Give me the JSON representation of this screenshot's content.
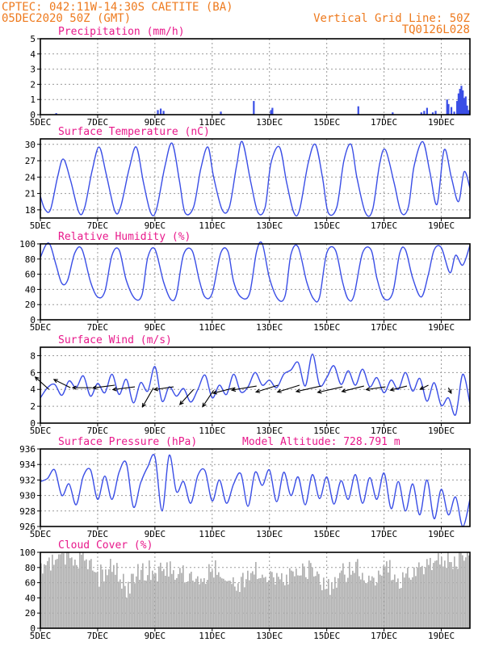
{
  "header": {
    "station": "CPTEC:  042:11W-14:30S  CAETITE (BA)",
    "run": "05DEC2020 50Z (GMT)",
    "grid_line": "Vertical Grid Line: 50Z",
    "code": "TQ0126L028"
  },
  "colors": {
    "header": "#ee7a1e",
    "title": "#e8198b",
    "series": "#3a4ee6",
    "cloud": "#b0b0b0",
    "arrow": "#000000"
  },
  "x_axis": {
    "ticks": [
      {
        "day": 0,
        "label": "5DEC"
      },
      {
        "day": 2,
        "label": "7DEC"
      },
      {
        "day": 4,
        "label": "9DEC"
      },
      {
        "day": 6,
        "label": "11DEC"
      },
      {
        "day": 8,
        "label": "13DEC"
      },
      {
        "day": 10,
        "label": "15DEC"
      },
      {
        "day": 12,
        "label": "17DEC"
      },
      {
        "day": 14,
        "label": "19DEC"
      }
    ],
    "range_days": [
      0,
      15
    ]
  },
  "chart_data": [
    {
      "type": "bar",
      "title": "Precipitation (mm/h)",
      "ylim": [
        0,
        5
      ],
      "yticks": [
        0,
        1,
        2,
        3,
        4,
        5
      ],
      "x_unit": "days since 5DEC",
      "x": [
        0.55,
        4.1,
        4.2,
        4.3,
        6.3,
        7.45,
        8.05,
        8.1,
        11.1,
        12.3,
        13.3,
        13.4,
        13.5,
        13.7,
        13.8,
        14.2,
        14.25,
        14.35,
        14.45,
        14.55,
        14.6,
        14.65,
        14.7,
        14.75,
        14.8,
        14.85,
        14.9,
        14.95
      ],
      "values": [
        0.1,
        0.3,
        0.4,
        0.25,
        0.2,
        0.9,
        0.3,
        0.45,
        0.55,
        0.15,
        0.15,
        0.25,
        0.45,
        0.15,
        0.25,
        1.0,
        0.7,
        0.5,
        0.2,
        0.9,
        1.4,
        1.7,
        1.9,
        1.6,
        1.1,
        1.2,
        0.6,
        0.3
      ]
    },
    {
      "type": "line",
      "title": "Surface Temperature (nC)",
      "ylim": [
        16.5,
        31
      ],
      "yticks": [
        18,
        21,
        24,
        27,
        30
      ],
      "series": [
        {
          "x": [
            0,
            0.15,
            0.35,
            0.6,
            0.8,
            1.05,
            1.35,
            1.55,
            1.8,
            2.05,
            2.3,
            2.6,
            2.8,
            3.1,
            3.35,
            3.6,
            3.85,
            4.05,
            4.35,
            4.6,
            4.85,
            5.05,
            5.35,
            5.6,
            5.85,
            6.05,
            6.35,
            6.6,
            6.85,
            7.05,
            7.35,
            7.6,
            7.85,
            8.05,
            8.35,
            8.6,
            8.85,
            9.05,
            9.35,
            9.6,
            9.85,
            10.05,
            10.35,
            10.6,
            10.85,
            11.05,
            11.35,
            11.6,
            11.85,
            12.05,
            12.35,
            12.6,
            12.85,
            13.05,
            13.35,
            13.6,
            13.85,
            14.1,
            14.35,
            14.6,
            14.8,
            15
          ],
          "values": [
            20.5,
            18.2,
            18.0,
            24.0,
            27.3,
            23.5,
            17.5,
            18.5,
            25.0,
            29.5,
            24.5,
            17.8,
            18.5,
            25.5,
            29.5,
            23.0,
            17.5,
            18.0,
            26.0,
            30.2,
            23.5,
            17.5,
            18.5,
            25.5,
            29.5,
            24.0,
            18.0,
            18.5,
            26.0,
            30.5,
            23.0,
            17.5,
            18.5,
            26.5,
            29.5,
            23.0,
            17.5,
            18.0,
            26.5,
            30.0,
            24.0,
            17.5,
            18.5,
            27.0,
            30.0,
            24.0,
            17.5,
            18.0,
            26.5,
            29.0,
            23.0,
            17.5,
            18.5,
            26.0,
            30.5,
            25.0,
            19.0,
            29.0,
            24.0,
            19.5,
            25.0,
            22.0
          ]
        }
      ]
    },
    {
      "type": "line",
      "title": "Relative Humidity (%)",
      "ylim": [
        0,
        100
      ],
      "yticks": [
        0,
        20,
        40,
        60,
        80,
        100
      ],
      "series": [
        {
          "x": [
            0,
            0.2,
            0.35,
            0.55,
            0.75,
            0.95,
            1.2,
            1.45,
            1.75,
            2.0,
            2.25,
            2.5,
            2.75,
            3.0,
            3.3,
            3.55,
            3.75,
            4.0,
            4.3,
            4.55,
            4.75,
            5.0,
            5.3,
            5.55,
            5.75,
            6.0,
            6.3,
            6.55,
            6.75,
            7.0,
            7.3,
            7.55,
            7.75,
            8.0,
            8.3,
            8.55,
            8.75,
            9.0,
            9.3,
            9.55,
            9.75,
            10.0,
            10.3,
            10.55,
            10.75,
            10.95,
            11.25,
            11.55,
            11.75,
            12.0,
            12.3,
            12.55,
            12.75,
            13.0,
            13.3,
            13.55,
            13.75,
            14.0,
            14.3,
            14.5,
            14.75,
            15
          ],
          "values": [
            82,
            99,
            98,
            72,
            48,
            52,
            88,
            93,
            50,
            30,
            37,
            85,
            92,
            52,
            28,
            33,
            82,
            93,
            50,
            27,
            33,
            86,
            91,
            52,
            30,
            35,
            88,
            90,
            50,
            30,
            34,
            90,
            100,
            55,
            27,
            32,
            86,
            96,
            50,
            27,
            30,
            88,
            92,
            50,
            27,
            32,
            88,
            92,
            55,
            28,
            35,
            88,
            92,
            55,
            30,
            60,
            92,
            95,
            62,
            85,
            72,
            98
          ]
        }
      ]
    },
    {
      "type": "line",
      "title": "Surface Wind (m/s)",
      "ylim": [
        0,
        9
      ],
      "yticks": [
        0,
        2,
        4,
        6,
        8
      ],
      "series": [
        {
          "x": [
            0,
            0.25,
            0.5,
            0.75,
            1.0,
            1.25,
            1.5,
            1.75,
            2.0,
            2.25,
            2.5,
            2.75,
            3.0,
            3.25,
            3.5,
            3.75,
            4.0,
            4.25,
            4.5,
            4.75,
            5.0,
            5.25,
            5.5,
            5.75,
            6.0,
            6.25,
            6.5,
            6.75,
            7.0,
            7.25,
            7.5,
            7.75,
            8.0,
            8.25,
            8.5,
            8.75,
            9.0,
            9.25,
            9.5,
            9.75,
            10.0,
            10.25,
            10.5,
            10.75,
            11.0,
            11.25,
            11.5,
            11.75,
            12.0,
            12.25,
            12.5,
            12.75,
            13.0,
            13.25,
            13.5,
            13.75,
            14.0,
            14.25,
            14.5,
            14.75,
            15
          ],
          "values": [
            3.0,
            4.2,
            4.6,
            3.3,
            5.0,
            4.2,
            5.6,
            3.2,
            4.7,
            3.6,
            5.8,
            3.4,
            5.2,
            2.4,
            4.8,
            3.8,
            6.7,
            2.6,
            4.3,
            3.2,
            4.1,
            2.5,
            4.0,
            5.7,
            3.0,
            4.5,
            3.4,
            5.8,
            3.7,
            4.3,
            6.0,
            4.5,
            5.1,
            4.2,
            5.8,
            6.3,
            7.2,
            4.4,
            8.2,
            4.5,
            5.4,
            6.8,
            4.6,
            6.2,
            4.5,
            6.4,
            4.3,
            5.4,
            3.6,
            5.1,
            4.0,
            6.0,
            3.8,
            5.3,
            2.6,
            4.8,
            2.1,
            3.0,
            1.0,
            5.8,
            2.3
          ]
        }
      ],
      "arrows": {
        "x": [
          0.3,
          1.05,
          1.8,
          2.6,
          3.3,
          3.95,
          4.65,
          5.35,
          6.05,
          6.8,
          7.55,
          8.3,
          9.05,
          9.8,
          10.55,
          11.3,
          12.05,
          12.8,
          13.55,
          14.25
        ],
        "speed": [
          4.0,
          4.2,
          4.2,
          4.5,
          4.3,
          4.2,
          4.3,
          4.0,
          3.9,
          4.2,
          4.4,
          4.5,
          4.5,
          4.4,
          4.3,
          4.4,
          4.3,
          4.4,
          4.5,
          4.2
        ],
        "u": [
          -0.5,
          -0.6,
          -0.7,
          -0.8,
          -0.8,
          -0.4,
          -0.7,
          -0.5,
          -0.4,
          -0.8,
          -0.9,
          -0.8,
          -0.8,
          -0.9,
          -0.9,
          -0.8,
          -0.7,
          -0.6,
          -0.3,
          0.1
        ],
        "v": [
          -0.45,
          -0.3,
          0.0,
          0.1,
          0.1,
          0.7,
          0.1,
          0.55,
          0.6,
          0.2,
          0.15,
          0.25,
          0.25,
          0.2,
          0.2,
          0.2,
          0.1,
          0.15,
          0.15,
          0.2
        ]
      }
    },
    {
      "type": "line",
      "title": "Surface Pressure (hPa)",
      "annotation": "Model Altitude: 728.791 m",
      "ylim": [
        926,
        936
      ],
      "yticks": [
        926,
        928,
        930,
        932,
        934,
        936
      ],
      "series": [
        {
          "x": [
            0,
            0.25,
            0.5,
            0.75,
            1.0,
            1.25,
            1.5,
            1.75,
            2.0,
            2.25,
            2.5,
            2.75,
            3.0,
            3.25,
            3.5,
            3.75,
            4.0,
            4.25,
            4.5,
            4.75,
            5.0,
            5.25,
            5.5,
            5.75,
            6.0,
            6.25,
            6.5,
            6.75,
            7.0,
            7.25,
            7.5,
            7.75,
            8.0,
            8.25,
            8.5,
            8.75,
            9.0,
            9.25,
            9.5,
            9.75,
            10.0,
            10.25,
            10.5,
            10.75,
            11.0,
            11.25,
            11.5,
            11.75,
            12.0,
            12.25,
            12.5,
            12.75,
            13.0,
            13.25,
            13.5,
            13.75,
            14.0,
            14.25,
            14.5,
            14.75,
            15
          ],
          "values": [
            931.8,
            932.2,
            933.3,
            930.0,
            931.5,
            928.8,
            932.5,
            933.3,
            929.5,
            932.5,
            929.5,
            933.0,
            934.2,
            928.5,
            931.6,
            933.7,
            935.0,
            928.0,
            935.2,
            930.5,
            931.8,
            929.0,
            932.6,
            933.2,
            929.3,
            932.0,
            929.0,
            931.5,
            932.8,
            928.6,
            933.0,
            931.3,
            933.3,
            929.2,
            933.0,
            930.0,
            932.4,
            928.8,
            932.7,
            929.6,
            932.4,
            928.9,
            931.9,
            929.5,
            932.7,
            929.0,
            932.3,
            929.5,
            932.9,
            928.3,
            931.8,
            928.0,
            931.5,
            927.5,
            932.0,
            927.0,
            930.8,
            927.5,
            929.8,
            926.0,
            929.5
          ]
        }
      ]
    },
    {
      "type": "bar",
      "title": "Cloud Cover (%)",
      "ylim": [
        0,
        100
      ],
      "yticks": [
        0,
        20,
        40,
        60,
        80,
        100
      ],
      "x": [
        0,
        0.5,
        1.0,
        1.5,
        2.0,
        2.5,
        3.0,
        3.5,
        4.0,
        4.5,
        5.0,
        5.5,
        6.0,
        6.5,
        7.0,
        7.5,
        8.0,
        8.5,
        9.0,
        9.5,
        10.0,
        10.5,
        11.0,
        11.5,
        12.0,
        12.5,
        13.0,
        13.5,
        14.0,
        14.5,
        15
      ],
      "values": [
        88,
        95,
        100,
        98,
        75,
        92,
        60,
        85,
        82,
        90,
        78,
        72,
        88,
        66,
        70,
        84,
        78,
        72,
        90,
        82,
        58,
        80,
        88,
        68,
        92,
        72,
        88,
        86,
        98,
        100,
        100
      ]
    }
  ]
}
